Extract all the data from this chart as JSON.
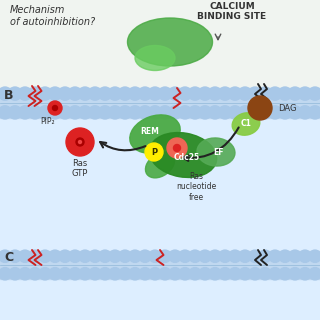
{
  "bg_top": "#f0f4f0",
  "bg_section_b": "#ddeeff",
  "bg_section_c": "#ddeeff",
  "membrane_color": "#c0d8f0",
  "membrane_circle_color": "#a8c8e8",
  "green_sos": "#4aaa44",
  "green_sos_dark": "#2a8a24",
  "green_ef": "#55aa55",
  "green_c1": "#88cc44",
  "brown_dag": "#8B4513",
  "red_ras": "#dd2222",
  "red_ras_light": "#ee6655",
  "yellow_p": "#ffee00",
  "label_font": 6.5,
  "section_label_font": 9,
  "title_top_text": "Mechanism\nof autoinhibition?",
  "calcium_text": "CALCIUM\nBINDING SITE",
  "section_b_label": "B",
  "section_c_label": "C",
  "pip2_label": "PIP₂",
  "ras_gtp_label": "Ras\nGTP",
  "ras_free_label": "Ras\nnucleotide\nfree",
  "rem_label": "REM",
  "cdc25_label": "Cdc25",
  "c1_label": "C1",
  "ef_label": "EF",
  "dag_label": "DAG",
  "p_label": "P"
}
